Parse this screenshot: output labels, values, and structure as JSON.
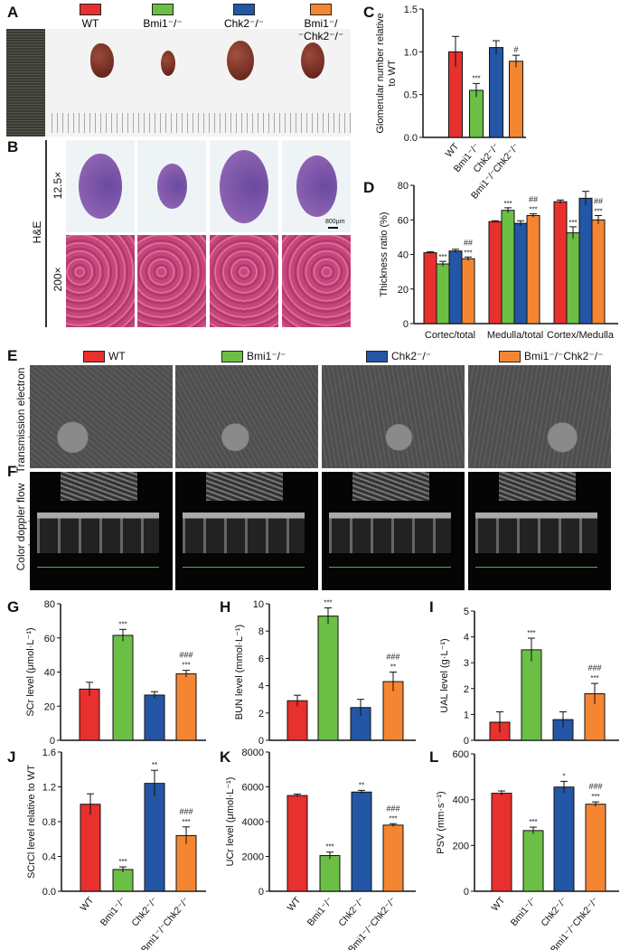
{
  "groups": [
    {
      "label": "WT",
      "color": "#e8302e"
    },
    {
      "label": "Bmi1⁻/⁻",
      "color": "#6cbf45"
    },
    {
      "label": "Chk2⁻/⁻",
      "color": "#2456a6"
    },
    {
      "label": "Bmi1⁻/⁻Chk2⁻/⁻",
      "color": "#f58631"
    }
  ],
  "panel_labels": {
    "A": "A",
    "B": "B",
    "C": "C",
    "D": "D",
    "E": "E",
    "F": "F",
    "G": "G",
    "H": "H",
    "I": "I",
    "J": "J",
    "K": "K",
    "L": "L"
  },
  "panel_b": {
    "stain": "H&E",
    "row1": "12.5×",
    "row2": "200×",
    "scale_bar": "800μm"
  },
  "panel_e": {
    "row_label": "Transmission electron micrograph"
  },
  "panel_f": {
    "row_label": "Color doppler flow imaging"
  },
  "chart_data": [
    {
      "id": "C",
      "type": "bar",
      "ylabel": "Glomerular number relative to WT",
      "ylim": [
        0,
        1.5
      ],
      "yticks": [
        "0.0",
        "0.5",
        "1.0",
        "1.5"
      ],
      "categories": [
        "WT",
        "Bmi1⁻/⁻",
        "Chk2⁻/⁻",
        "Bmi1⁻/⁻Chk2⁻/⁻"
      ],
      "values": [
        1.0,
        0.55,
        1.05,
        0.89
      ],
      "errors": [
        0.18,
        0.08,
        0.08,
        0.07
      ],
      "annotations": [
        "",
        "***",
        "",
        "#"
      ]
    },
    {
      "id": "D",
      "type": "grouped-bar",
      "ylabel": "Thickness ratio (%)",
      "ylim": [
        0,
        80
      ],
      "yticks": [
        "0",
        "20",
        "40",
        "60",
        "80"
      ],
      "categories": [
        "Cortec/total",
        "Medulla/total",
        "Cortex/Medulla"
      ],
      "series": [
        {
          "name": "WT",
          "values": [
            41,
            59,
            70.5
          ],
          "errors": [
            0.5,
            0.5,
            1
          ],
          "annotations": [
            "",
            "",
            ""
          ]
        },
        {
          "name": "Bmi1⁻/⁻",
          "values": [
            34.5,
            65.5,
            52.5
          ],
          "errors": [
            1.5,
            1.5,
            3.5
          ],
          "annotations": [
            "***",
            "***",
            "***"
          ]
        },
        {
          "name": "Chk2⁻/⁻",
          "values": [
            42,
            58,
            72.5
          ],
          "errors": [
            1,
            1.5,
            4
          ],
          "annotations": [
            "",
            "",
            ""
          ]
        },
        {
          "name": "Bmi1⁻/⁻Chk2⁻/⁻",
          "values": [
            37.5,
            62.5,
            60
          ],
          "errors": [
            1,
            1,
            2.5
          ],
          "annotations": [
            "##\n***",
            "##\n***",
            "##\n***"
          ]
        }
      ]
    },
    {
      "id": "G",
      "type": "bar",
      "ylabel": "SCr level (μmol·L⁻¹)",
      "ylim": [
        0,
        80
      ],
      "yticks": [
        "0",
        "20",
        "40",
        "60",
        "80"
      ],
      "categories": [
        "WT",
        "Bmi1⁻/⁻",
        "Chk2⁻/⁻",
        "Bmi1⁻/⁻Chk2⁻/⁻"
      ],
      "values": [
        30,
        61.5,
        26.5,
        39
      ],
      "errors": [
        4,
        3.5,
        2,
        2
      ],
      "annotations": [
        "",
        "***",
        "",
        "###\n***"
      ]
    },
    {
      "id": "H",
      "type": "bar",
      "ylabel": "BUN level (mmol·L⁻¹)",
      "ylim": [
        0,
        10
      ],
      "yticks": [
        "0",
        "2",
        "4",
        "6",
        "8",
        "10"
      ],
      "categories": [
        "WT",
        "Bmi1⁻/⁻",
        "Chk2⁻/⁻",
        "Bmi1⁻/⁻Chk2⁻/⁻"
      ],
      "values": [
        2.9,
        9.1,
        2.4,
        4.3
      ],
      "errors": [
        0.4,
        0.6,
        0.6,
        0.7
      ],
      "annotations": [
        "",
        "***",
        "",
        "###\n**"
      ]
    },
    {
      "id": "I",
      "type": "bar",
      "ylabel": "UAL level (g·L⁻¹)",
      "ylim": [
        0,
        5
      ],
      "yticks": [
        "0",
        "1",
        "2",
        "3",
        "4",
        "5"
      ],
      "categories": [
        "WT",
        "Bmi1⁻/⁻",
        "Chk2⁻/⁻",
        "Bmi1⁻/⁻Chk2⁻/⁻"
      ],
      "values": [
        0.7,
        3.5,
        0.8,
        1.8
      ],
      "errors": [
        0.4,
        0.45,
        0.3,
        0.4
      ],
      "annotations": [
        "",
        "***",
        "",
        "###\n***"
      ]
    },
    {
      "id": "J",
      "type": "bar",
      "ylabel": "SCrCl level relative to WT",
      "ylim": [
        0,
        1.6
      ],
      "yticks": [
        "0.0",
        "0.4",
        "0.8",
        "1.2",
        "1.6"
      ],
      "categories": [
        "WT",
        "Bmi1⁻/⁻",
        "Chk2⁻/⁻",
        "Bmi1⁻/⁻Chk2⁻/⁻"
      ],
      "values": [
        1.0,
        0.25,
        1.24,
        0.64
      ],
      "errors": [
        0.12,
        0.03,
        0.15,
        0.1
      ],
      "annotations": [
        "",
        "***",
        "**",
        "###\n***"
      ]
    },
    {
      "id": "K",
      "type": "bar",
      "ylabel": "UCr level (μmol·L⁻¹)",
      "ylim": [
        0,
        8000
      ],
      "yticks": [
        "0",
        "2000",
        "4000",
        "6000",
        "8000"
      ],
      "categories": [
        "WT",
        "Bmi1⁻/⁻",
        "Chk2⁻/⁻",
        "Bmi1⁻/⁻Chk2⁻/⁻"
      ],
      "values": [
        5500,
        2050,
        5700,
        3800
      ],
      "errors": [
        80,
        200,
        100,
        80
      ],
      "annotations": [
        "",
        "***",
        "**",
        "###\n***"
      ]
    },
    {
      "id": "L",
      "type": "bar",
      "ylabel": "PSV (mm·s⁻¹)",
      "ylim": [
        0,
        600
      ],
      "yticks": [
        "0",
        "200",
        "400",
        "600"
      ],
      "categories": [
        "WT",
        "Bmi1⁻/⁻",
        "Chk2⁻/⁻",
        "Bmi1⁻/⁻Chk2⁻/⁻"
      ],
      "values": [
        428,
        265,
        455,
        380
      ],
      "errors": [
        10,
        15,
        25,
        10
      ],
      "annotations": [
        "",
        "***",
        "*",
        "###\n***"
      ]
    }
  ]
}
